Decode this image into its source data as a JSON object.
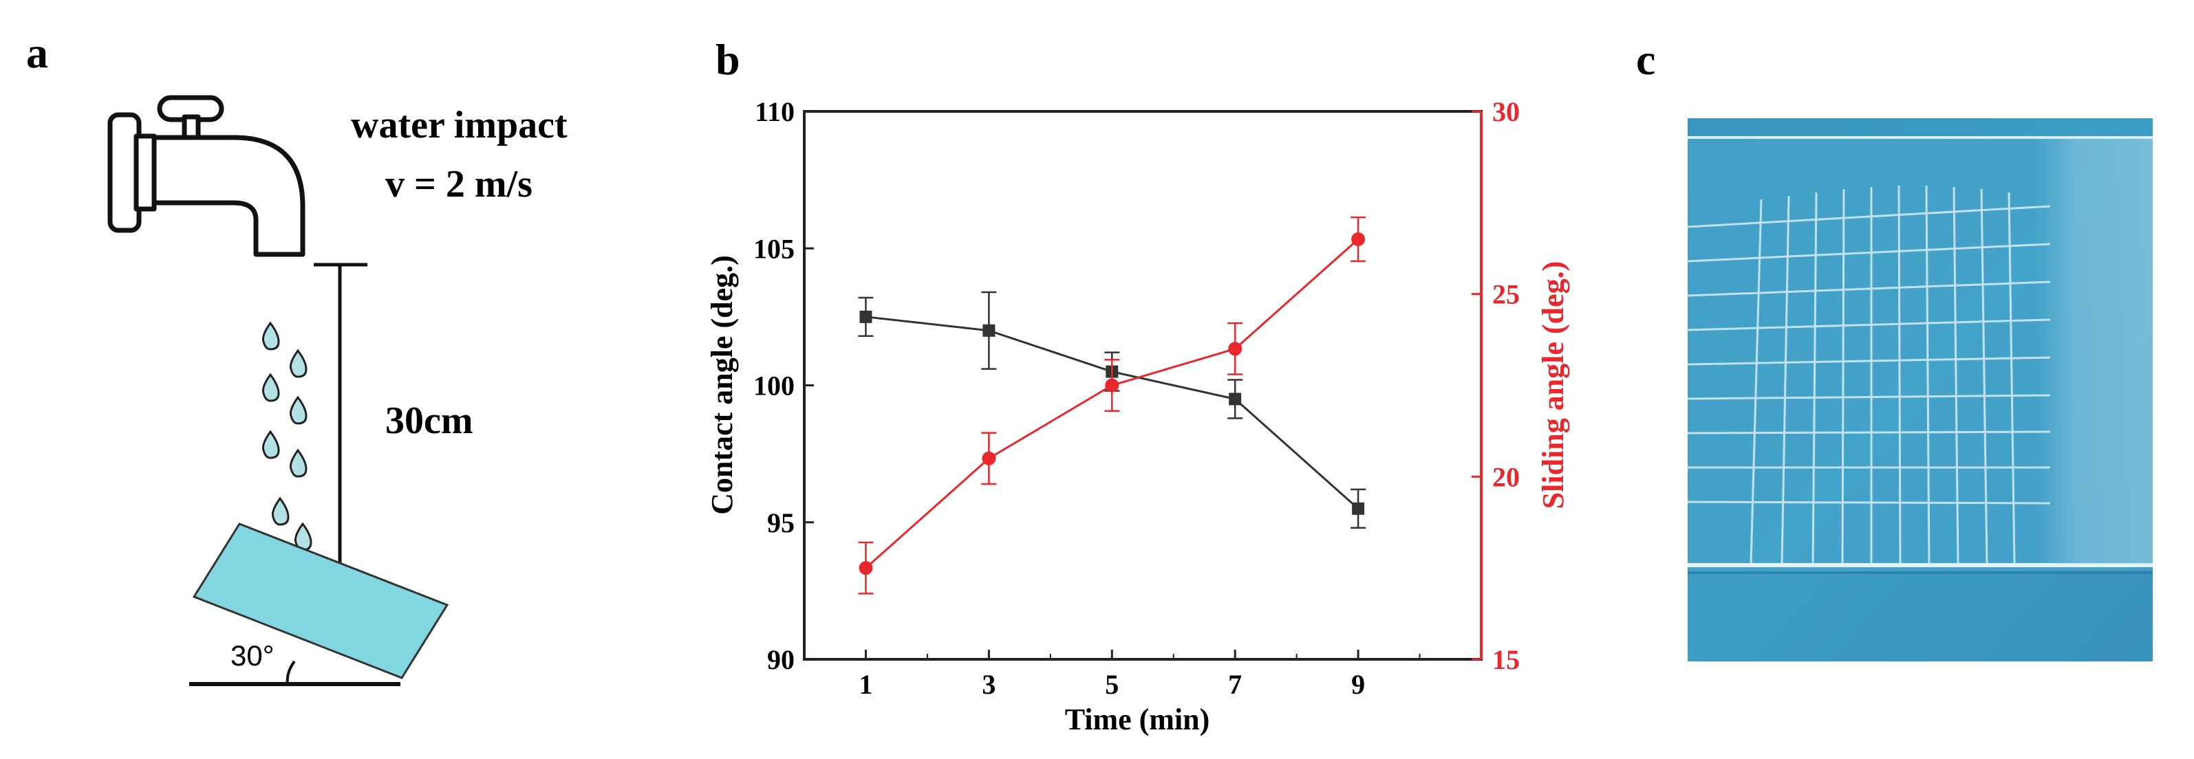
{
  "panels": {
    "a": {
      "label": "a",
      "impact_title": "water impact",
      "velocity": "v = 2 m/s",
      "height": "30cm",
      "tilt_angle": "30°"
    },
    "b": {
      "label": "b"
    },
    "c": {
      "label": "c"
    }
  },
  "colors": {
    "contact_series": "#333333",
    "sliding_series": "#e8282c",
    "droplet_fill": "#b3e2e6",
    "plate_fill": "#82d6df",
    "photo_blue": "#3a9ac2"
  },
  "chart_data": {
    "type": "line",
    "title": "",
    "xlabel": "Time (min)",
    "x": [
      1,
      3,
      5,
      7,
      9
    ],
    "xticks": [
      "1",
      "3",
      "5",
      "7",
      "9"
    ],
    "xlim": [
      0,
      11
    ],
    "left_axis": {
      "label": "Contact angle (deg.)",
      "ylim": [
        90,
        110
      ],
      "ticks": [
        "90",
        "95",
        "100",
        "105",
        "110"
      ]
    },
    "right_axis": {
      "label": "Sliding angle (deg.)",
      "ylim": [
        15,
        30
      ],
      "ticks": [
        "15",
        "20",
        "25",
        "30"
      ]
    },
    "series": [
      {
        "name": "Contact angle",
        "axis": "left",
        "color": "#333333",
        "marker": "square",
        "values": [
          102.5,
          102.0,
          100.5,
          99.5,
          95.5
        ],
        "errors": [
          0.7,
          1.4,
          0.7,
          0.7,
          0.7
        ]
      },
      {
        "name": "Sliding angle",
        "axis": "right",
        "color": "#e8282c",
        "marker": "circle",
        "values": [
          17.5,
          20.5,
          22.5,
          23.5,
          26.5
        ],
        "errors": [
          0.7,
          0.7,
          0.7,
          0.7,
          0.6
        ]
      }
    ]
  }
}
